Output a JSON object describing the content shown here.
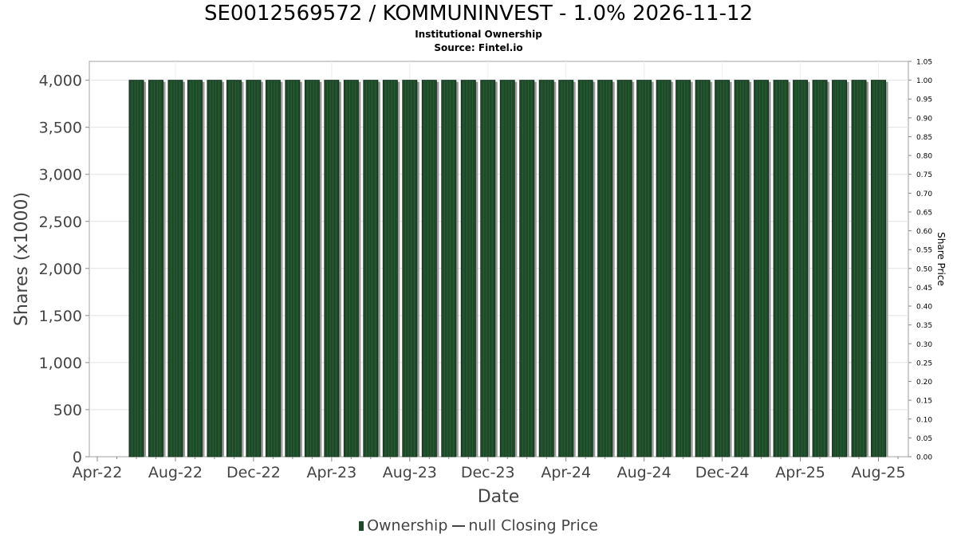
{
  "chart_data": {
    "type": "bar",
    "title": "SE0012569572 / KOMMUNINVEST - 1.0% 2026-11-12",
    "subtitle_lines": [
      "Institutional Ownership",
      "Source: Fintel.io"
    ],
    "xlabel": "Date",
    "ylabel": "Shares (x1000)",
    "y2label": "Share Price",
    "x_tick_labels": [
      "Apr-22",
      "Aug-22",
      "Dec-22",
      "Apr-23",
      "Aug-23",
      "Dec-23",
      "Apr-24",
      "Aug-24",
      "Dec-24",
      "Apr-25",
      "Aug-25"
    ],
    "y_ticks": [
      "0",
      "500",
      "1,000",
      "1,500",
      "2,000",
      "2,500",
      "3,000",
      "3,500",
      "4,000"
    ],
    "y2_ticks": [
      "0.00",
      "0.05",
      "0.10",
      "0.15",
      "0.20",
      "0.25",
      "0.30",
      "0.35",
      "0.40",
      "0.45",
      "0.50",
      "0.55",
      "0.60",
      "0.65",
      "0.70",
      "0.75",
      "0.80",
      "0.85",
      "0.90",
      "0.95",
      "1.00",
      "1.05"
    ],
    "ylim": [
      0,
      4200
    ],
    "y2lim": [
      0,
      1.05
    ],
    "x_range": [
      "2022-04",
      "2025-09"
    ],
    "grid": true,
    "legend_placement": "bottom",
    "series": [
      {
        "name": "Ownership",
        "color": "#1e4a2a",
        "x": [
          "2022-06",
          "2022-07",
          "2022-08",
          "2022-09",
          "2022-10",
          "2022-11",
          "2022-12",
          "2023-01",
          "2023-02",
          "2023-03",
          "2023-04",
          "2023-05",
          "2023-06",
          "2023-07",
          "2023-08",
          "2023-09",
          "2023-10",
          "2023-11",
          "2023-12",
          "2024-01",
          "2024-02",
          "2024-03",
          "2024-04",
          "2024-05",
          "2024-06",
          "2024-07",
          "2024-08",
          "2024-09",
          "2024-10",
          "2024-11",
          "2024-12",
          "2025-01",
          "2025-02",
          "2025-03",
          "2025-04",
          "2025-05",
          "2025-06",
          "2025-07",
          "2025-08"
        ],
        "values": [
          4000,
          4000,
          4000,
          4000,
          4000,
          4000,
          4000,
          4000,
          4000,
          4000,
          4000,
          4000,
          4000,
          4000,
          4000,
          4000,
          4000,
          4000,
          4000,
          4000,
          4000,
          4000,
          4000,
          4000,
          4000,
          4000,
          4000,
          4000,
          4000,
          4000,
          4000,
          4000,
          4000,
          4000,
          4000,
          4000,
          4000,
          4000,
          4000
        ]
      },
      {
        "name": "null Closing Price",
        "color": "#444444",
        "values": []
      }
    ]
  }
}
